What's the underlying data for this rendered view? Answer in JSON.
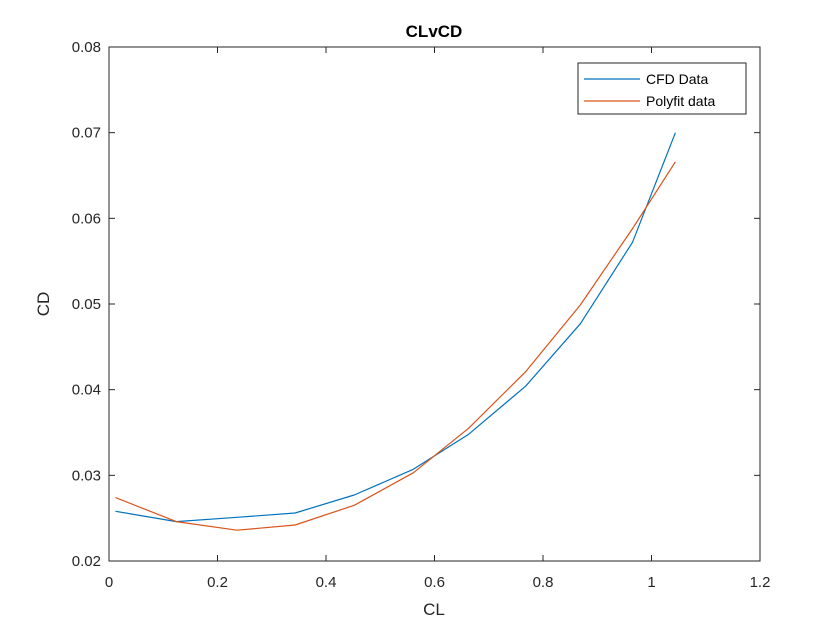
{
  "chart_data": {
    "type": "line",
    "title": "CLvCD",
    "xlabel": "CL",
    "ylabel": "CD",
    "xlim": [
      0,
      1.2
    ],
    "ylim": [
      0.02,
      0.08
    ],
    "xticks": [
      0,
      0.2,
      0.4,
      0.6,
      0.8,
      1,
      1.2
    ],
    "xtick_labels": [
      "0",
      "0.2",
      "0.4",
      "0.6",
      "0.8",
      "1",
      "1.2"
    ],
    "yticks": [
      0.02,
      0.03,
      0.04,
      0.05,
      0.06,
      0.07,
      0.08
    ],
    "ytick_labels": [
      "0.02",
      "0.03",
      "0.04",
      "0.05",
      "0.06",
      "0.07",
      "0.08"
    ],
    "grid": false,
    "legend_position": "top-right",
    "series": [
      {
        "name": "CFD Data",
        "color": "#0072BD",
        "x": [
          0.012,
          0.124,
          0.236,
          0.343,
          0.452,
          0.561,
          0.663,
          0.768,
          0.869,
          0.965,
          1.044
        ],
        "y": [
          0.0258,
          0.0246,
          0.0251,
          0.0256,
          0.0277,
          0.0307,
          0.0348,
          0.0404,
          0.0477,
          0.0572,
          0.07
        ]
      },
      {
        "name": "Polyfit data",
        "color": "#D95319",
        "x": [
          0.012,
          0.124,
          0.236,
          0.343,
          0.452,
          0.561,
          0.663,
          0.768,
          0.869,
          0.965,
          1.044
        ],
        "y": [
          0.0274,
          0.0246,
          0.0236,
          0.0242,
          0.0265,
          0.0303,
          0.0355,
          0.0421,
          0.0499,
          0.0588,
          0.0666
        ]
      }
    ]
  }
}
